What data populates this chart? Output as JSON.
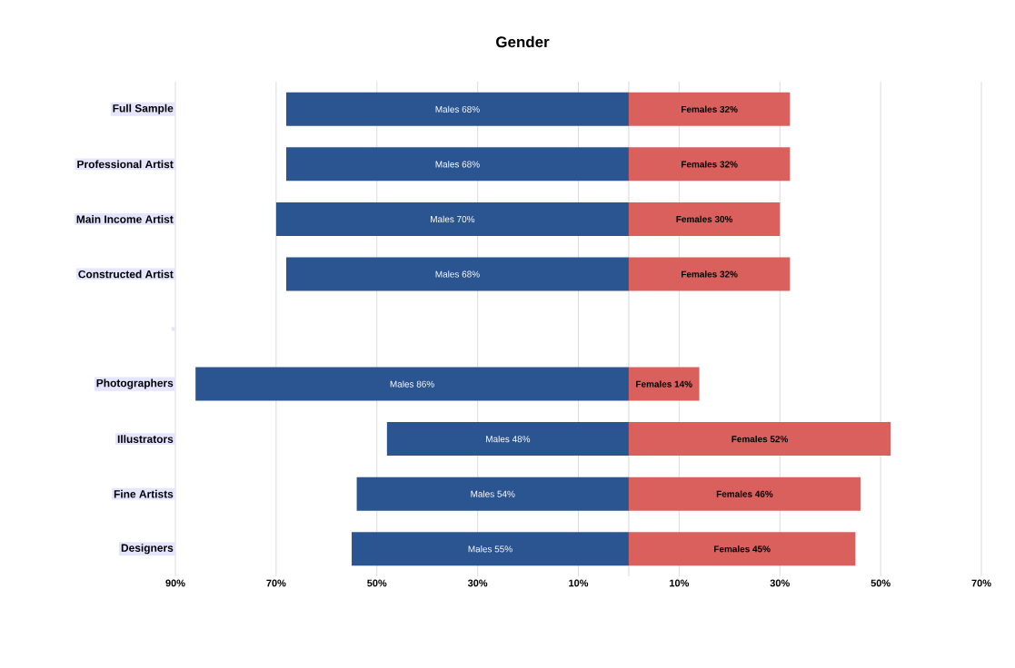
{
  "chart_data": {
    "type": "bar",
    "orientation": "horizontal",
    "stacked": true,
    "title": "Gender",
    "categories": [
      "Full Sample",
      "Professional Artist",
      "Main Income Artist",
      "Constructed Artist",
      null,
      "Photographers",
      "Illustrators",
      "Fine Artists",
      "Designers"
    ],
    "series": [
      {
        "color": "#2b5590",
        "values": [
          -68,
          -68,
          -70,
          -68,
          null,
          -86,
          -48,
          -54,
          -55
        ],
        "value_labels": [
          "Males 68%",
          "Males 68%",
          "Males 70%",
          "Males 68%",
          null,
          "Males 86%",
          "Males 48%",
          "Males 54%",
          "Males 55%"
        ]
      },
      {
        "color": "#d9605c",
        "values": [
          32,
          32,
          30,
          32,
          null,
          14,
          52,
          46,
          45
        ],
        "value_labels": [
          "Females 32%",
          "Females 32%",
          "Females 30%",
          "Females 32%",
          null,
          "Females 14%",
          "Females 52%",
          "Females 46%",
          "Females 45%"
        ]
      }
    ],
    "xlim": [
      -90,
      70
    ],
    "xticks": [
      {
        "value": -90,
        "label": "90%"
      },
      {
        "value": -70,
        "label": "70%"
      },
      {
        "value": -50,
        "label": "50%"
      },
      {
        "value": -30,
        "label": "30%"
      },
      {
        "value": -10,
        "label": "10%"
      },
      {
        "value": 10,
        "label": "10%"
      },
      {
        "value": 30,
        "label": "30%"
      },
      {
        "value": 50,
        "label": "50%"
      },
      {
        "value": 70,
        "label": "70%"
      }
    ],
    "grid": "x"
  }
}
